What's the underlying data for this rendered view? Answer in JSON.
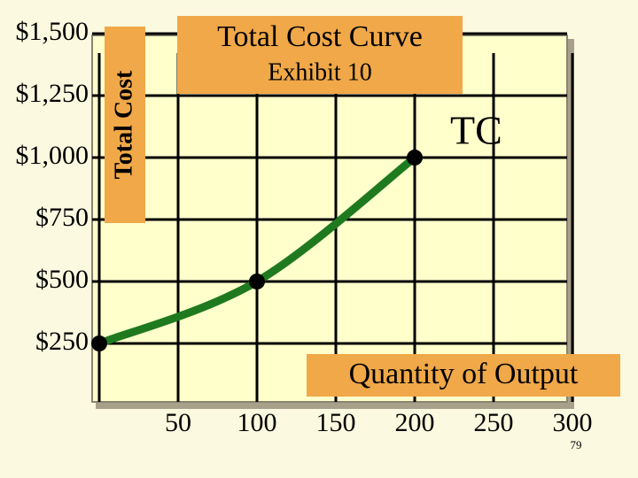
{
  "chart_data": {
    "type": "line",
    "title": "Total Cost Curve",
    "subtitle": "Exhibit 10",
    "y_label": "Total Cost",
    "x_label": "Quantity of Output",
    "x": [
      0,
      100,
      200
    ],
    "series": [
      {
        "name": "TC",
        "color": "#1f7a1f",
        "values": [
          250,
          500,
          1000
        ]
      }
    ],
    "xlim": [
      0,
      300
    ],
    "xticks": [
      50,
      100,
      150,
      200,
      250,
      300
    ],
    "ylim": [
      0,
      1500
    ],
    "yticks": [
      {
        "value": 250,
        "label": "$250"
      },
      {
        "value": 500,
        "label": "$500"
      },
      {
        "value": 750,
        "label": "$750"
      },
      {
        "value": 1000,
        "label": "$1,000"
      },
      {
        "value": 1250,
        "label": "$1,250"
      },
      {
        "value": 1500,
        "label": "$1,500"
      }
    ],
    "grid": true
  },
  "slide_number": "79"
}
